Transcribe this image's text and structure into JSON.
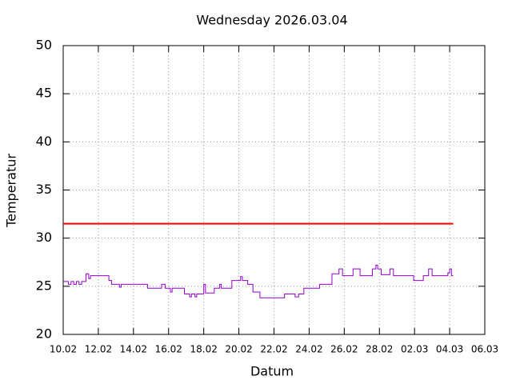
{
  "chart_data": {
    "type": "line",
    "title": "Wednesday 2026.03.04",
    "xlabel": "Datum",
    "ylabel": "Temperatur",
    "xlim": [
      0,
      24
    ],
    "xticks": [
      {
        "value": 0,
        "label": "10.02"
      },
      {
        "value": 2,
        "label": "12.02"
      },
      {
        "value": 4,
        "label": "14.02"
      },
      {
        "value": 6,
        "label": "16.02"
      },
      {
        "value": 8,
        "label": "18.02"
      },
      {
        "value": 10,
        "label": "20.02"
      },
      {
        "value": 12,
        "label": "22.02"
      },
      {
        "value": 14,
        "label": "24.02"
      },
      {
        "value": 16,
        "label": "26.02"
      },
      {
        "value": 18,
        "label": "28.02"
      },
      {
        "value": 20,
        "label": "02.03"
      },
      {
        "value": 22,
        "label": "04.03"
      },
      {
        "value": 24,
        "label": "06.03"
      }
    ],
    "ylim": [
      20,
      50
    ],
    "yticks": [
      20,
      25,
      30,
      35,
      40,
      45,
      50
    ],
    "grid": true,
    "line_style": "steps",
    "series": [
      {
        "color": "#9400d3",
        "x": [
          0,
          0.3,
          0.45,
          0.6,
          0.75,
          0.9,
          1.05,
          1.3,
          1.45,
          1.55,
          2.6,
          2.75,
          3.2,
          3.3,
          4.8,
          5.6,
          5.8,
          6.1,
          6.2,
          6.9,
          7.2,
          7.3,
          7.5,
          7.6,
          8.0,
          8.1,
          8.6,
          8.9,
          9.0,
          9.6,
          10.1,
          10.2,
          10.5,
          10.8,
          11.2,
          12.6,
          13.2,
          13.4,
          13.7,
          14.6,
          15.3,
          15.7,
          15.9,
          16.5,
          16.9,
          17.6,
          17.8,
          17.9,
          18.1,
          18.6,
          18.8,
          19.95,
          20.5,
          20.8,
          21.0,
          21.9,
          22.0,
          22.1,
          22.2
        ],
        "values": [
          25.5,
          25.2,
          25.5,
          25.2,
          25.5,
          25.2,
          25.5,
          26.3,
          25.8,
          26.1,
          25.6,
          25.2,
          24.9,
          25.2,
          24.8,
          25.2,
          24.8,
          24.4,
          24.8,
          24.2,
          23.9,
          24.2,
          23.9,
          24.2,
          25.2,
          24.3,
          24.8,
          25.2,
          24.8,
          25.6,
          26.0,
          25.6,
          25.2,
          24.4,
          23.8,
          24.2,
          23.9,
          24.2,
          24.8,
          25.2,
          26.3,
          26.8,
          26.1,
          26.8,
          26.1,
          26.8,
          27.2,
          26.8,
          26.2,
          26.8,
          26.1,
          25.6,
          26.1,
          26.8,
          26.1,
          26.4,
          26.8,
          26.1,
          26.1
        ]
      },
      {
        "color": "#ff0000",
        "x": [
          0,
          22.2
        ],
        "values": [
          31.5,
          31.5
        ]
      }
    ]
  }
}
